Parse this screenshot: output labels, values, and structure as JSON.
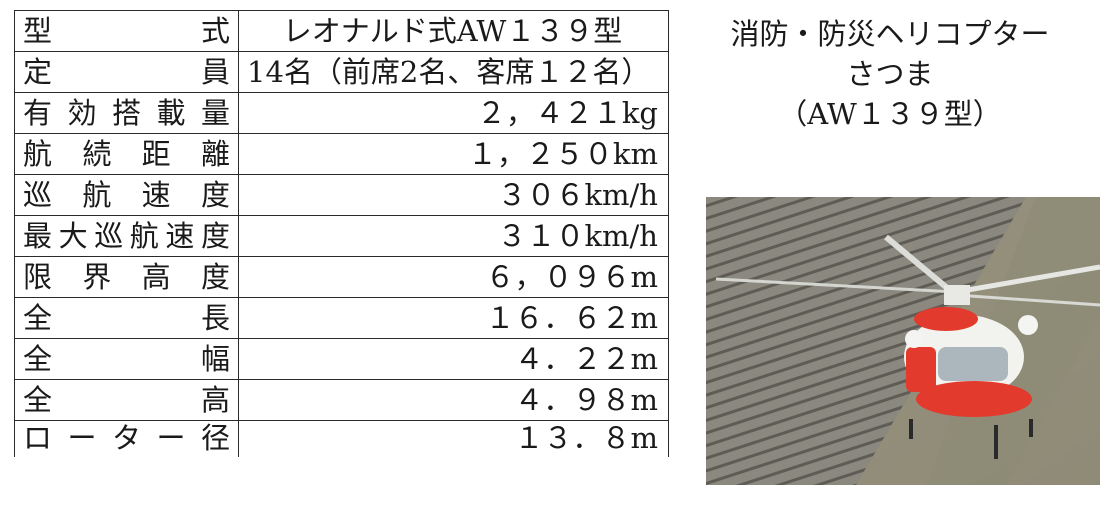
{
  "specs": [
    {
      "label": "型　　　式",
      "value": "レオナルド式AW１３９型"
    },
    {
      "label": "定　　　員",
      "value": "14名（前席2名、客席１２名）"
    },
    {
      "label": "有効搭載量",
      "value": "２，４２１kg"
    },
    {
      "label": "航続距離",
      "value": "１，２５０km"
    },
    {
      "label": "巡航速度",
      "value": "３０６km/h"
    },
    {
      "label": "最大巡航速度",
      "value": "３１０km/h"
    },
    {
      "label": "限界高度",
      "value": "６，０９６m"
    },
    {
      "label": "全　　　長",
      "value": "１６．６２m"
    },
    {
      "label": "全　　　幅",
      "value": "４．２２m"
    },
    {
      "label": "全　　　高",
      "value": "４．９８m"
    },
    {
      "label": "ローター径",
      "value": "１３．８m"
    }
  ],
  "caption": {
    "line1": "消防・防災ヘリコプター",
    "line2": "さつま",
    "line3": "（AW１３９型）"
  },
  "photo_colors": {
    "body": "#e23a2c",
    "white": "#f4f4f2",
    "hill": "#7c7a70",
    "sky": "#9a9890"
  }
}
